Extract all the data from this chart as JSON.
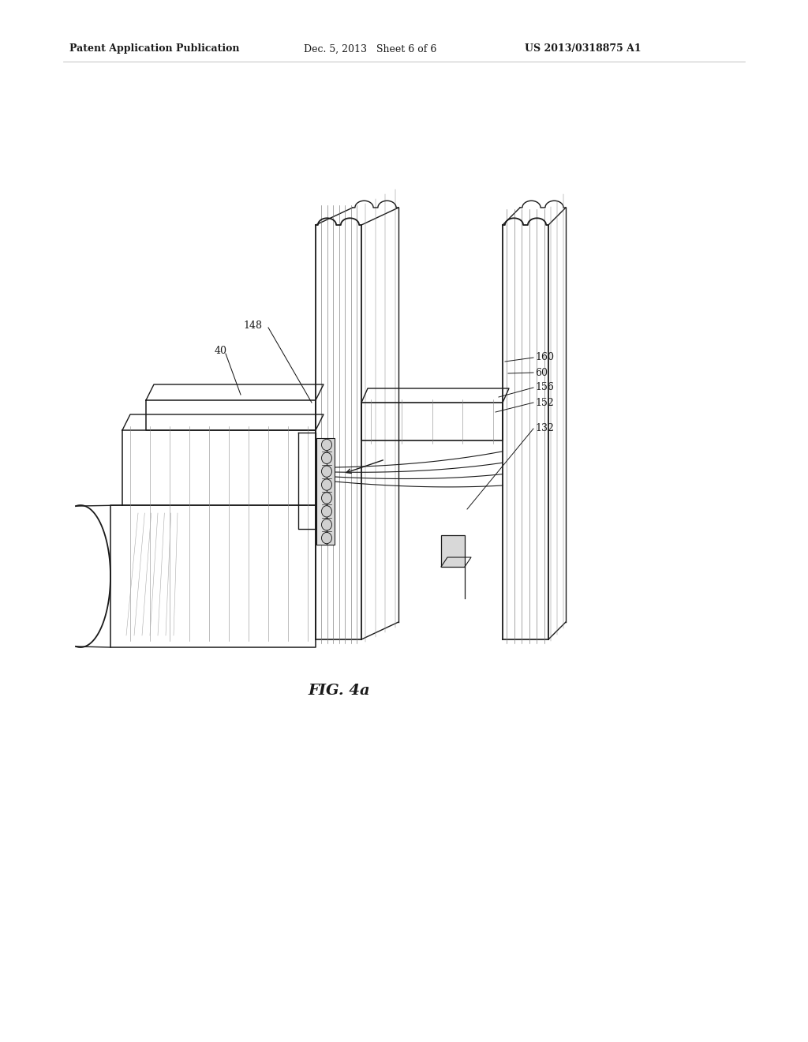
{
  "bg_color": "#ffffff",
  "header_left": "Patent Application Publication",
  "header_mid": "Dec. 5, 2013   Sheet 6 of 6",
  "header_right": "US 2013/0318875 A1",
  "caption": "FIG. 4a",
  "line_color": "#1a1a1a",
  "text_color": "#1a1a1a"
}
